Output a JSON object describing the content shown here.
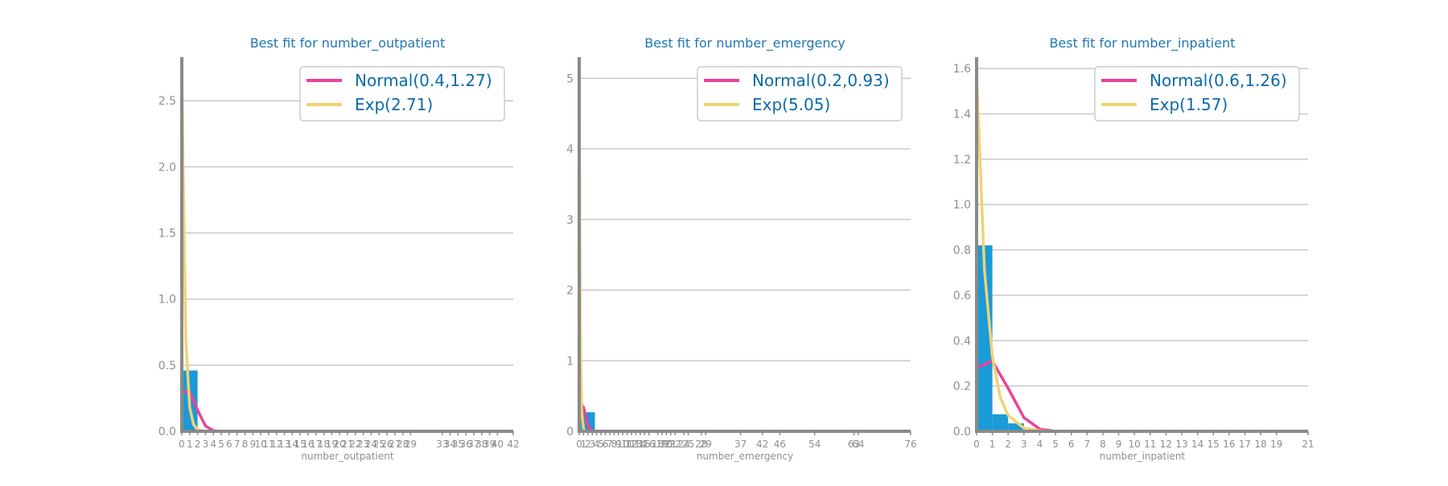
{
  "colors": {
    "title": "#1f77b4",
    "legend_text": "#0d6aa8",
    "hist": "#1a9ad6",
    "normal": "#e8439a",
    "exp": "#f0d275",
    "axis": "#8a8a8a",
    "grid": "#c8c8c8",
    "tick_text": "#8f8f8f"
  },
  "chart_data": [
    {
      "type": "bar",
      "title": "Best fit for number_outpatient",
      "xlabel": "number_outpatient",
      "ylabel": "",
      "xlim": [
        0,
        42
      ],
      "ylim": [
        0,
        2.83
      ],
      "grid": true,
      "legend_placement": "top-right",
      "xticks": [
        "0",
        "1",
        "2",
        "3",
        "4",
        "5",
        "6",
        "7",
        "8",
        "9",
        "10",
        "11",
        "12",
        "13",
        "14",
        "15",
        "16",
        "17",
        "18",
        "19",
        "20",
        "21",
        "22",
        "23",
        "24",
        "25",
        "26",
        "27",
        "28",
        "29",
        "33",
        "34",
        "35",
        "36",
        "37",
        "38",
        "39",
        "40",
        "42"
      ],
      "yticks": [
        "0.0",
        "0.5",
        "1.0",
        "1.5",
        "2.0",
        "2.5"
      ],
      "histogram": {
        "edges": [
          0,
          2
        ],
        "heights": [
          0.46
        ]
      },
      "series": [
        {
          "name": "Normal(0.4,1.27)",
          "kind": "line",
          "x": [
            0,
            1,
            2,
            3,
            4,
            5,
            6,
            7,
            8
          ],
          "y": [
            0.3,
            0.3,
            0.16,
            0.04,
            0.005,
            0,
            0,
            0,
            0
          ]
        },
        {
          "name": "Exp(2.71)",
          "kind": "line",
          "x": [
            0,
            0.5,
            1,
            1.5,
            2,
            3,
            4,
            5
          ],
          "y": [
            2.71,
            0.7,
            0.18,
            0.05,
            0.012,
            0.001,
            0,
            0
          ]
        }
      ]
    },
    {
      "type": "bar",
      "title": "Best fit for number_emergency",
      "xlabel": "number_emergency",
      "ylabel": "",
      "xlim": [
        0,
        76
      ],
      "ylim": [
        0,
        5.3
      ],
      "grid": true,
      "legend_placement": "top-right",
      "xticks": [
        "0",
        "1",
        "2",
        "3",
        "4",
        "5",
        "6",
        "7",
        "8",
        "9",
        "10",
        "11",
        "12",
        "13",
        "14",
        "15",
        "16",
        "18",
        "19",
        "20",
        "21",
        "22",
        "24",
        "25",
        "28",
        "29",
        "37",
        "42",
        "46",
        "54",
        "63",
        "64",
        "76"
      ],
      "yticks": [
        "0",
        "1",
        "2",
        "3",
        "4",
        "5"
      ],
      "histogram": {
        "edges": [
          0,
          3.6
        ],
        "heights": [
          0.27
        ]
      },
      "series": [
        {
          "name": "Normal(0.2,0.93)",
          "kind": "line",
          "x": [
            0,
            1,
            2,
            3,
            4,
            5,
            6
          ],
          "y": [
            0.42,
            0.34,
            0.08,
            0.004,
            0,
            0,
            0
          ]
        },
        {
          "name": "Exp(5.05)",
          "kind": "line",
          "x": [
            0,
            0.3,
            0.6,
            1,
            1.5,
            2,
            3
          ],
          "y": [
            5.05,
            1.1,
            0.25,
            0.03,
            0.003,
            0,
            0
          ]
        }
      ]
    },
    {
      "type": "bar",
      "title": "Best fit for number_inpatient",
      "xlabel": "number_inpatient",
      "ylabel": "",
      "xlim": [
        0,
        21
      ],
      "ylim": [
        0,
        1.65
      ],
      "grid": true,
      "legend_placement": "top-right",
      "xticks": [
        "0",
        "1",
        "2",
        "3",
        "4",
        "5",
        "6",
        "7",
        "8",
        "9",
        "10",
        "11",
        "12",
        "13",
        "14",
        "15",
        "16",
        "17",
        "18",
        "19",
        "21"
      ],
      "yticks": [
        "0.0",
        "0.2",
        "0.4",
        "0.6",
        "0.8",
        "1.0",
        "1.2",
        "1.4",
        "1.6"
      ],
      "histogram": {
        "edges": [
          0,
          1,
          2,
          3
        ],
        "heights": [
          0.82,
          0.075,
          0.035
        ]
      },
      "series": [
        {
          "name": "Normal(0.6,1.26)",
          "kind": "line",
          "x": [
            0,
            1,
            2,
            3,
            4,
            5,
            6,
            7
          ],
          "y": [
            0.28,
            0.31,
            0.19,
            0.06,
            0.01,
            0,
            0,
            0
          ]
        },
        {
          "name": "Exp(1.57)",
          "kind": "line",
          "x": [
            0,
            0.5,
            1,
            1.5,
            2,
            3,
            4,
            5
          ],
          "y": [
            1.57,
            0.71,
            0.33,
            0.15,
            0.07,
            0.014,
            0.003,
            0
          ]
        }
      ]
    }
  ]
}
